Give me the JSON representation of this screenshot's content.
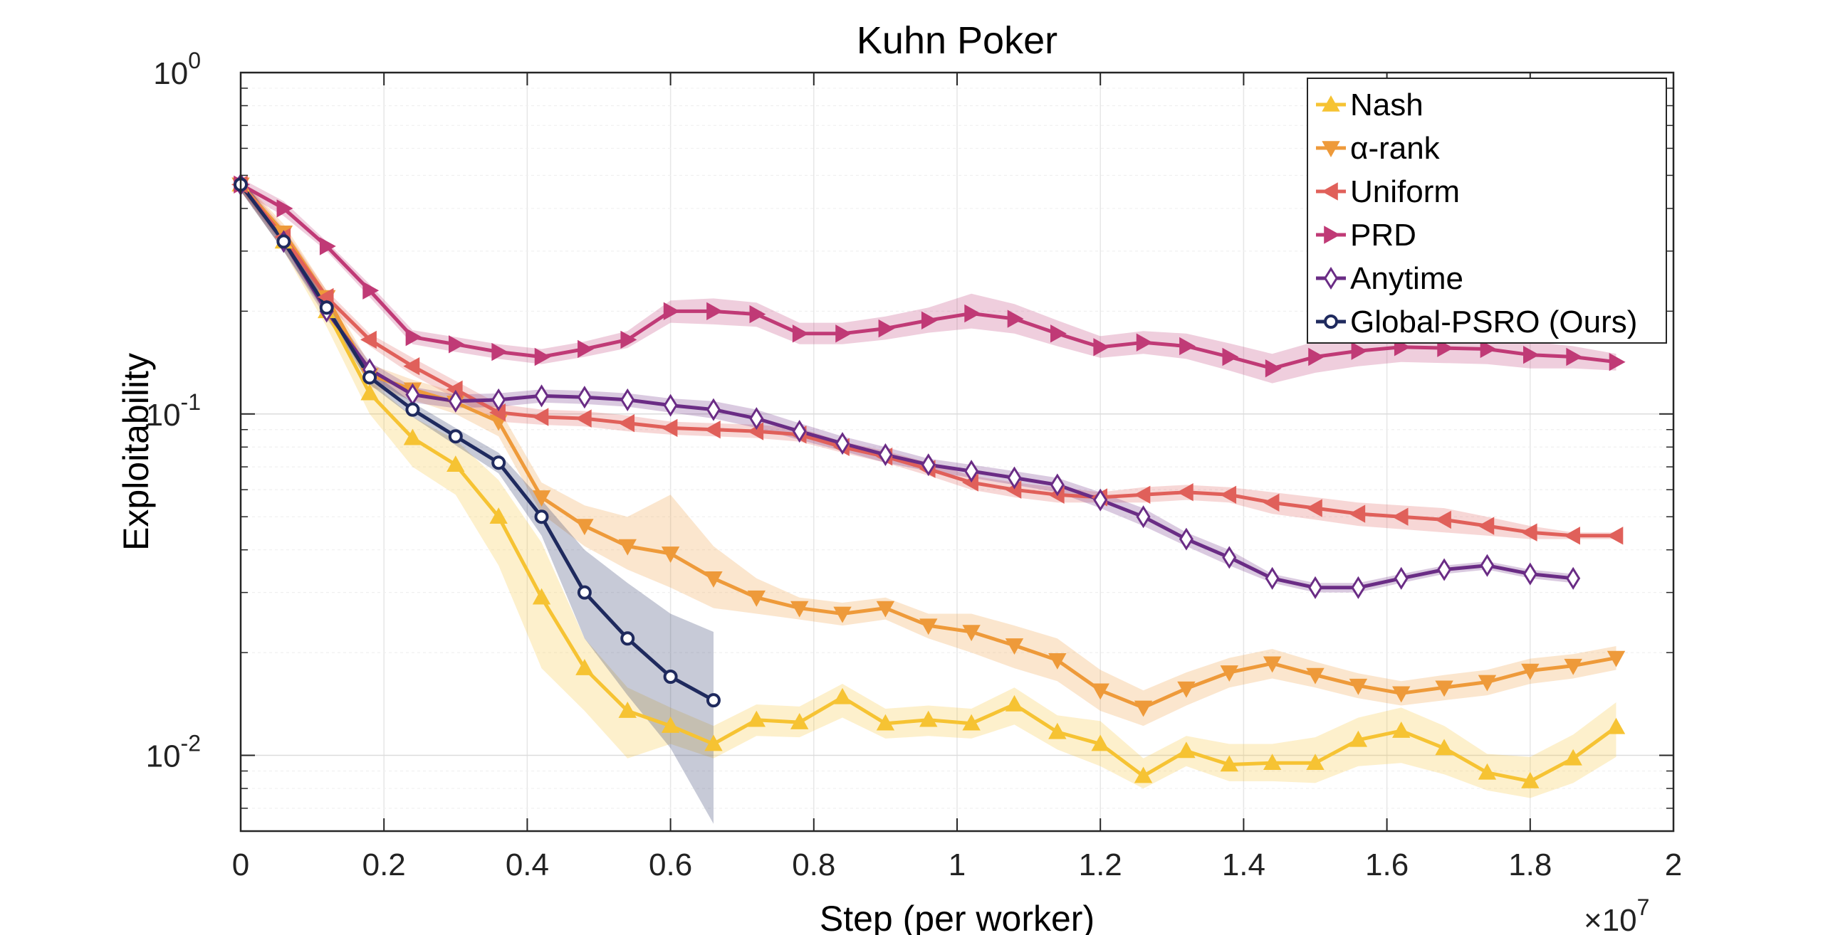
{
  "chart_data": {
    "type": "line",
    "title": "Kuhn Poker",
    "xlabel": "Step (per worker)",
    "ylabel": "Exploitability",
    "x_multiplier": "×10",
    "x_multiplier_exp": "7",
    "yscale": "log",
    "xlim": [
      0,
      2
    ],
    "ylim": [
      0.006,
      1
    ],
    "xticks": [
      "0",
      "0.2",
      "0.4",
      "0.6",
      "0.8",
      "1",
      "1.2",
      "1.4",
      "1.6",
      "1.8",
      "2"
    ],
    "yticks": [
      {
        "value": 1,
        "base": "10",
        "exp": "0"
      },
      {
        "value": 0.1,
        "base": "10",
        "exp": "-1"
      },
      {
        "value": 0.01,
        "base": "10",
        "exp": "-2"
      }
    ],
    "grid": true,
    "legend_position": "top-right",
    "series": [
      {
        "name": "Nash",
        "color": "#f6c333",
        "marker": "triangle-up",
        "x": [
          0,
          0.06,
          0.12,
          0.18,
          0.24,
          0.3,
          0.36,
          0.42,
          0.48,
          0.54,
          0.6,
          0.66,
          0.72,
          0.78,
          0.84,
          0.9,
          0.96,
          1.02,
          1.08,
          1.14,
          1.2,
          1.26,
          1.32,
          1.38,
          1.44,
          1.5,
          1.56,
          1.62,
          1.68,
          1.74,
          1.8,
          1.86,
          1.92
        ],
        "y": [
          0.47,
          0.32,
          0.2,
          0.115,
          0.085,
          0.071,
          0.05,
          0.029,
          0.018,
          0.0135,
          0.0122,
          0.0108,
          0.0127,
          0.0125,
          0.0148,
          0.0124,
          0.0127,
          0.0124,
          0.0141,
          0.0117,
          0.0108,
          0.0087,
          0.0103,
          0.0094,
          0.0095,
          0.0095,
          0.0111,
          0.0118,
          0.0105,
          0.0089,
          0.0084,
          0.0098,
          0.0121
        ],
        "band_lower": [
          0.45,
          0.3,
          0.18,
          0.1,
          0.07,
          0.058,
          0.036,
          0.018,
          0.0135,
          0.0098,
          0.0108,
          0.0098,
          0.0114,
          0.0113,
          0.0129,
          0.0112,
          0.0114,
          0.0112,
          0.0123,
          0.0104,
          0.0093,
          0.008,
          0.0093,
          0.0084,
          0.0084,
          0.0083,
          0.0093,
          0.0095,
          0.0088,
          0.0079,
          0.0075,
          0.0083,
          0.0099
        ],
        "band_upper": [
          0.49,
          0.34,
          0.22,
          0.125,
          0.098,
          0.084,
          0.064,
          0.042,
          0.022,
          0.0158,
          0.0138,
          0.0122,
          0.0141,
          0.0139,
          0.0162,
          0.0137,
          0.014,
          0.0137,
          0.0158,
          0.0131,
          0.0126,
          0.0098,
          0.0114,
          0.0108,
          0.0108,
          0.0113,
          0.0129,
          0.0138,
          0.0122,
          0.0101,
          0.0099,
          0.0115,
          0.0143
        ]
      },
      {
        "name": "α-rank",
        "color": "#ee9a3a",
        "marker": "triangle-down",
        "x": [
          0,
          0.06,
          0.12,
          0.18,
          0.24,
          0.3,
          0.36,
          0.42,
          0.48,
          0.54,
          0.6,
          0.66,
          0.72,
          0.78,
          0.84,
          0.9,
          0.96,
          1.02,
          1.08,
          1.14,
          1.2,
          1.26,
          1.32,
          1.38,
          1.44,
          1.5,
          1.56,
          1.62,
          1.68,
          1.74,
          1.8,
          1.86,
          1.92
        ],
        "y": [
          0.47,
          0.34,
          0.22,
          0.13,
          0.118,
          0.108,
          0.095,
          0.057,
          0.047,
          0.041,
          0.039,
          0.033,
          0.029,
          0.027,
          0.026,
          0.027,
          0.024,
          0.023,
          0.021,
          0.019,
          0.0155,
          0.0138,
          0.0157,
          0.0175,
          0.0186,
          0.0172,
          0.016,
          0.0152,
          0.0158,
          0.0164,
          0.0177,
          0.0183,
          0.0193
        ],
        "band_lower": [
          0.45,
          0.32,
          0.21,
          0.12,
          0.11,
          0.1,
          0.086,
          0.051,
          0.041,
          0.035,
          0.031,
          0.027,
          0.026,
          0.025,
          0.024,
          0.025,
          0.022,
          0.02,
          0.018,
          0.0165,
          0.0135,
          0.0122,
          0.014,
          0.0158,
          0.0168,
          0.0158,
          0.0147,
          0.014,
          0.0145,
          0.015,
          0.0162,
          0.0168,
          0.0178
        ],
        "band_upper": [
          0.49,
          0.36,
          0.23,
          0.14,
          0.126,
          0.116,
          0.104,
          0.063,
          0.054,
          0.05,
          0.058,
          0.041,
          0.033,
          0.029,
          0.028,
          0.029,
          0.026,
          0.026,
          0.024,
          0.022,
          0.0178,
          0.0155,
          0.0175,
          0.0193,
          0.0205,
          0.0188,
          0.0174,
          0.0165,
          0.0172,
          0.0178,
          0.0192,
          0.0198,
          0.0209
        ]
      },
      {
        "name": "Uniform",
        "color": "#e0605a",
        "marker": "triangle-left",
        "x": [
          0,
          0.06,
          0.12,
          0.18,
          0.24,
          0.3,
          0.36,
          0.42,
          0.48,
          0.54,
          0.6,
          0.66,
          0.72,
          0.78,
          0.84,
          0.9,
          0.96,
          1.02,
          1.08,
          1.14,
          1.2,
          1.26,
          1.32,
          1.38,
          1.44,
          1.5,
          1.56,
          1.62,
          1.68,
          1.74,
          1.8,
          1.86,
          1.92
        ],
        "y": [
          0.47,
          0.33,
          0.22,
          0.165,
          0.138,
          0.118,
          0.101,
          0.098,
          0.097,
          0.094,
          0.091,
          0.09,
          0.089,
          0.087,
          0.08,
          0.075,
          0.069,
          0.063,
          0.06,
          0.058,
          0.057,
          0.058,
          0.059,
          0.058,
          0.055,
          0.053,
          0.051,
          0.05,
          0.049,
          0.047,
          0.045,
          0.044,
          0.044
        ],
        "band_lower": [
          0.45,
          0.31,
          0.21,
          0.158,
          0.13,
          0.111,
          0.095,
          0.093,
          0.092,
          0.089,
          0.087,
          0.086,
          0.085,
          0.083,
          0.077,
          0.072,
          0.066,
          0.06,
          0.057,
          0.055,
          0.055,
          0.055,
          0.056,
          0.055,
          0.051,
          0.049,
          0.047,
          0.046,
          0.045,
          0.044,
          0.043,
          0.043,
          0.043
        ],
        "band_upper": [
          0.49,
          0.35,
          0.23,
          0.172,
          0.146,
          0.125,
          0.107,
          0.103,
          0.102,
          0.099,
          0.095,
          0.094,
          0.093,
          0.091,
          0.083,
          0.078,
          0.072,
          0.066,
          0.063,
          0.061,
          0.059,
          0.061,
          0.062,
          0.061,
          0.059,
          0.057,
          0.055,
          0.054,
          0.053,
          0.05,
          0.047,
          0.045,
          0.045
        ]
      },
      {
        "name": "PRD",
        "color": "#c03a76",
        "marker": "triangle-right",
        "x": [
          0,
          0.06,
          0.12,
          0.18,
          0.24,
          0.3,
          0.36,
          0.42,
          0.48,
          0.54,
          0.6,
          0.66,
          0.72,
          0.78,
          0.84,
          0.9,
          0.96,
          1.02,
          1.08,
          1.14,
          1.2,
          1.26,
          1.32,
          1.38,
          1.44,
          1.5,
          1.56,
          1.62,
          1.68,
          1.74,
          1.8,
          1.86,
          1.92
        ],
        "y": [
          0.47,
          0.4,
          0.31,
          0.23,
          0.168,
          0.16,
          0.152,
          0.147,
          0.155,
          0.165,
          0.2,
          0.2,
          0.196,
          0.172,
          0.172,
          0.178,
          0.188,
          0.197,
          0.19,
          0.172,
          0.157,
          0.162,
          0.158,
          0.147,
          0.136,
          0.147,
          0.153,
          0.157,
          0.156,
          0.155,
          0.149,
          0.147,
          0.142
        ],
        "band_lower": [
          0.45,
          0.38,
          0.3,
          0.22,
          0.16,
          0.152,
          0.145,
          0.14,
          0.147,
          0.156,
          0.185,
          0.183,
          0.18,
          0.16,
          0.16,
          0.165,
          0.173,
          0.178,
          0.172,
          0.158,
          0.146,
          0.15,
          0.145,
          0.134,
          0.123,
          0.132,
          0.138,
          0.142,
          0.141,
          0.14,
          0.136,
          0.136,
          0.134
        ],
        "band_upper": [
          0.49,
          0.42,
          0.32,
          0.24,
          0.176,
          0.168,
          0.16,
          0.155,
          0.163,
          0.175,
          0.215,
          0.218,
          0.212,
          0.185,
          0.185,
          0.193,
          0.205,
          0.225,
          0.21,
          0.188,
          0.169,
          0.175,
          0.172,
          0.161,
          0.15,
          0.163,
          0.169,
          0.173,
          0.172,
          0.171,
          0.163,
          0.158,
          0.15
        ]
      },
      {
        "name": "Anytime",
        "color": "#6a2c85",
        "marker": "diamond",
        "x": [
          0,
          0.06,
          0.12,
          0.18,
          0.24,
          0.3,
          0.36,
          0.42,
          0.48,
          0.54,
          0.6,
          0.66,
          0.72,
          0.78,
          0.84,
          0.9,
          0.96,
          1.02,
          1.08,
          1.14,
          1.2,
          1.26,
          1.32,
          1.38,
          1.44,
          1.5,
          1.56,
          1.62,
          1.68,
          1.74,
          1.8,
          1.86
        ],
        "y": [
          0.47,
          0.32,
          0.2,
          0.135,
          0.114,
          0.109,
          0.11,
          0.113,
          0.112,
          0.11,
          0.106,
          0.103,
          0.097,
          0.089,
          0.082,
          0.076,
          0.071,
          0.068,
          0.065,
          0.062,
          0.056,
          0.05,
          0.043,
          0.038,
          0.033,
          0.031,
          0.031,
          0.033,
          0.035,
          0.036,
          0.034,
          0.033
        ],
        "band_lower": [
          0.45,
          0.3,
          0.19,
          0.128,
          0.108,
          0.104,
          0.105,
          0.108,
          0.107,
          0.105,
          0.101,
          0.097,
          0.091,
          0.084,
          0.078,
          0.072,
          0.068,
          0.065,
          0.062,
          0.059,
          0.053,
          0.047,
          0.041,
          0.036,
          0.032,
          0.03,
          0.03,
          0.032,
          0.034,
          0.035,
          0.033,
          0.032
        ],
        "band_upper": [
          0.49,
          0.34,
          0.21,
          0.142,
          0.12,
          0.114,
          0.115,
          0.118,
          0.117,
          0.115,
          0.111,
          0.109,
          0.103,
          0.094,
          0.086,
          0.08,
          0.074,
          0.071,
          0.068,
          0.065,
          0.059,
          0.053,
          0.045,
          0.04,
          0.034,
          0.032,
          0.032,
          0.034,
          0.036,
          0.037,
          0.035,
          0.034
        ]
      },
      {
        "name": "Global-PSRO (Ours)",
        "color": "#1f2a5e",
        "marker": "circle",
        "x": [
          0,
          0.06,
          0.12,
          0.18,
          0.24,
          0.3,
          0.36,
          0.42,
          0.48,
          0.54,
          0.6,
          0.66
        ],
        "y": [
          0.47,
          0.32,
          0.205,
          0.128,
          0.103,
          0.086,
          0.072,
          0.05,
          0.03,
          0.022,
          0.017,
          0.0145
        ],
        "band_lower": [
          0.45,
          0.3,
          0.195,
          0.122,
          0.098,
          0.081,
          0.067,
          0.044,
          0.022,
          0.015,
          0.0105,
          0.0063
        ],
        "band_upper": [
          0.49,
          0.34,
          0.215,
          0.134,
          0.108,
          0.091,
          0.077,
          0.056,
          0.04,
          0.032,
          0.026,
          0.023
        ]
      }
    ]
  }
}
